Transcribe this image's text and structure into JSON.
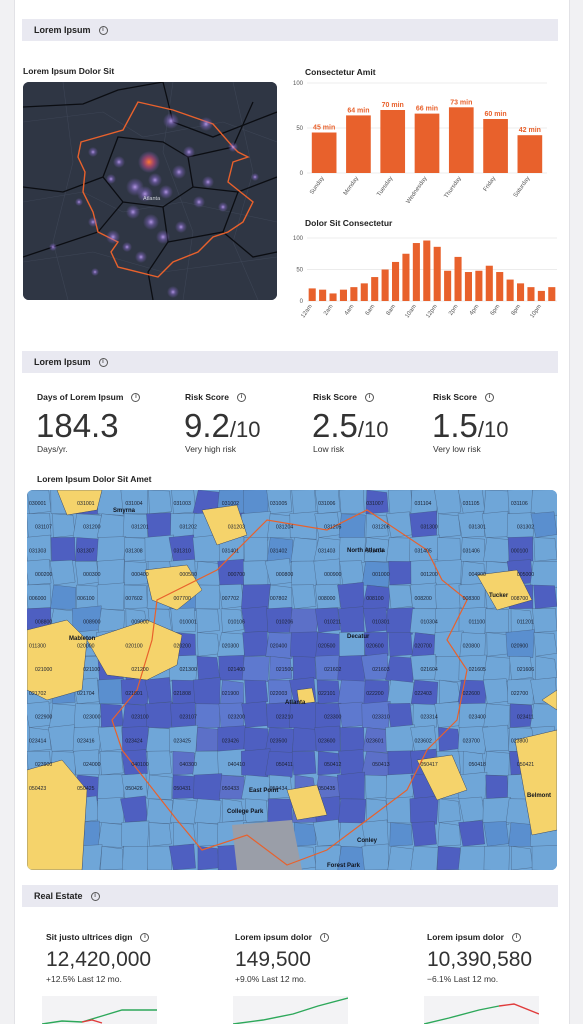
{
  "section1": {
    "title": "Lorem Ipsum"
  },
  "map1": {
    "title": "Lorem Ipsum Dolor Sit",
    "places": [
      "Atlanta"
    ]
  },
  "chart_data": [
    {
      "type": "bar",
      "title": "Consectetur Amit",
      "categories": [
        "Sunday",
        "Monday",
        "Tuesday",
        "Wednesday",
        "Thursday",
        "Friday",
        "Saturday"
      ],
      "values": [
        45,
        64,
        70,
        66,
        73,
        60,
        42
      ],
      "value_labels": [
        "45 min",
        "64 min",
        "70 min",
        "66 min",
        "73 min",
        "60 min",
        "42 min"
      ],
      "yticks": [
        "0",
        "50",
        "100"
      ],
      "ylim": [
        0,
        100
      ],
      "color": "#e8612c"
    },
    {
      "type": "bar",
      "title": "Dolor Sit Consectetur",
      "categories": [
        "12am",
        "1am",
        "2am",
        "3am",
        "4am",
        "5am",
        "6am",
        "7am",
        "8am",
        "9am",
        "10am",
        "11am",
        "12pm",
        "1pm",
        "2pm",
        "3pm",
        "4pm",
        "5pm",
        "6pm",
        "7pm",
        "8pm",
        "9pm",
        "10pm",
        "11pm"
      ],
      "tick_labels": [
        "12am",
        "2am",
        "4am",
        "6am",
        "8am",
        "10am",
        "12pm",
        "2pm",
        "4pm",
        "6pm",
        "8pm",
        "10pm"
      ],
      "values": [
        20,
        18,
        12,
        18,
        22,
        28,
        38,
        50,
        62,
        75,
        92,
        96,
        86,
        48,
        70,
        46,
        48,
        56,
        46,
        34,
        28,
        22,
        16,
        22
      ],
      "yticks": [
        "0",
        "50",
        "100"
      ],
      "ylim": [
        0,
        100
      ],
      "color": "#e8612c"
    }
  ],
  "section2": {
    "title": "Lorem Ipsum",
    "metrics": [
      {
        "label": "Days of Lorem Ipsum",
        "value": "184.3",
        "suffix": "",
        "sub": "Days/yr."
      },
      {
        "label": "Risk Score",
        "value": "9.2",
        "suffix": "/10",
        "sub": "Very high risk"
      },
      {
        "label": "Risk Score",
        "value": "2.5",
        "suffix": "/10",
        "sub": "Low risk"
      },
      {
        "label": "Risk Score",
        "value": "1.5",
        "suffix": "/10",
        "sub": "Very low risk"
      }
    ]
  },
  "map2": {
    "title": "Lorem Ipsum Dolor Sit Amet",
    "places": [
      "Atlanta",
      "North Atlanta",
      "Decatur",
      "Tucker",
      "Mableton",
      "Smyrna",
      "East Point",
      "College Park",
      "Conley",
      "Forest Park",
      "Belmont"
    ],
    "zip_labels": [
      "030001",
      "031001",
      "031004",
      "031003",
      "031002",
      "031005",
      "031006",
      "031007",
      "031104",
      "031105",
      "031106",
      "031107",
      "031200",
      "031201",
      "031202",
      "031203",
      "031204",
      "031205",
      "031206",
      "031300",
      "031301",
      "031302",
      "031303",
      "031307",
      "031308",
      "031310",
      "031401",
      "031402",
      "031403",
      "031404",
      "031405",
      "031406",
      "000100",
      "000200",
      "000300",
      "000400",
      "000500",
      "000700",
      "000800",
      "000900",
      "001000",
      "001200",
      "004900",
      "005000",
      "006000",
      "006100",
      "007602",
      "007700",
      "007702",
      "007802",
      "008000",
      "008100",
      "008200",
      "008300",
      "008700",
      "008800",
      "008900",
      "009000",
      "010001",
      "010106",
      "010206",
      "010211",
      "010301",
      "010304",
      "011100",
      "011201",
      "011300",
      "020000",
      "020100",
      "020200",
      "020300",
      "020400",
      "020500",
      "020600",
      "020700",
      "020800",
      "020900",
      "021000",
      "021100",
      "021200",
      "021300",
      "021400",
      "021500",
      "021602",
      "021603",
      "021604",
      "021605",
      "021606",
      "021702",
      "021704",
      "021801",
      "021808",
      "021900",
      "022003",
      "022101",
      "022200",
      "022403",
      "022600",
      "022700",
      "022900",
      "023000",
      "023100",
      "023107",
      "023200",
      "023210",
      "023300",
      "023310",
      "023314",
      "023400",
      "023411",
      "023414",
      "023416",
      "023424",
      "023425",
      "023426",
      "023500",
      "023600",
      "023601",
      "023602",
      "023700",
      "023800",
      "023900",
      "024000",
      "040100",
      "040300",
      "040410",
      "050411",
      "050412",
      "050413",
      "050417",
      "050418",
      "050421",
      "050423",
      "050425",
      "050426",
      "050431",
      "050433",
      "050434",
      "050435"
    ]
  },
  "section3": {
    "title": "Real Estate",
    "items": [
      {
        "label": "Sit justo ultrices dign",
        "value": "12,420,000",
        "sub": "+12.5% Last 12 mo."
      },
      {
        "label": "Lorem ipsum dolor",
        "value": "149,500",
        "sub": "+9.0% Last 12 mo."
      },
      {
        "label": "Lorem ipsum dolor",
        "value": "10,390,580",
        "sub": "−6.1% Last 12 mo."
      }
    ]
  },
  "colors": {
    "accent": "#e8612c",
    "map_dark": "#2d3340",
    "risk_high": "#f5d36b",
    "risk_mid": "#6fa6d8",
    "risk_low": "#4e5fc1",
    "spark_up": "#2da85a",
    "spark_down": "#e03b3b"
  },
  "icons": {
    "info": "info-icon"
  }
}
